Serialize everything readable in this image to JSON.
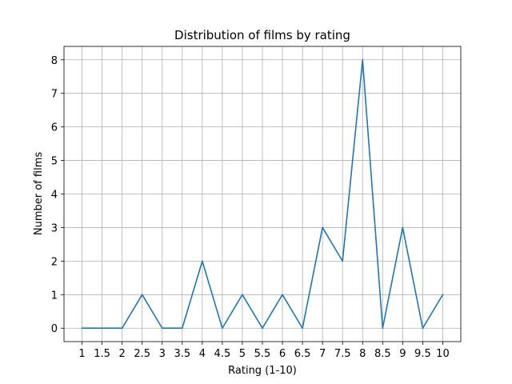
{
  "chart_data": {
    "type": "line",
    "title": "Distribution of films by rating",
    "xlabel": "Rating (1-10)",
    "ylabel": "Number of films",
    "x": [
      1,
      1.5,
      2,
      2.5,
      3,
      3.5,
      4,
      4.5,
      5,
      5.5,
      6,
      6.5,
      7,
      7.5,
      8,
      8.5,
      9,
      9.5,
      10
    ],
    "x_tick_labels": [
      "1",
      "1.5",
      "2",
      "2.5",
      "3",
      "3.5",
      "4",
      "4.5",
      "5",
      "5.5",
      "6",
      "6.5",
      "7",
      "7.5",
      "8",
      "8.5",
      "9",
      "9.5",
      "10"
    ],
    "y_ticks": [
      0,
      1,
      2,
      3,
      4,
      5,
      6,
      7,
      8
    ],
    "y_tick_labels": [
      "0",
      "1",
      "2",
      "3",
      "4",
      "5",
      "6",
      "7",
      "8"
    ],
    "series": [
      {
        "values": [
          0,
          0,
          0,
          1,
          0,
          0,
          2,
          0,
          1,
          0,
          1,
          0,
          3,
          2,
          8,
          0,
          3,
          0,
          1
        ],
        "color": "#1f77b4"
      }
    ],
    "xlim": [
      0.55,
      10.45
    ],
    "ylim": [
      -0.4,
      8.4
    ],
    "grid": true,
    "legend": false
  }
}
